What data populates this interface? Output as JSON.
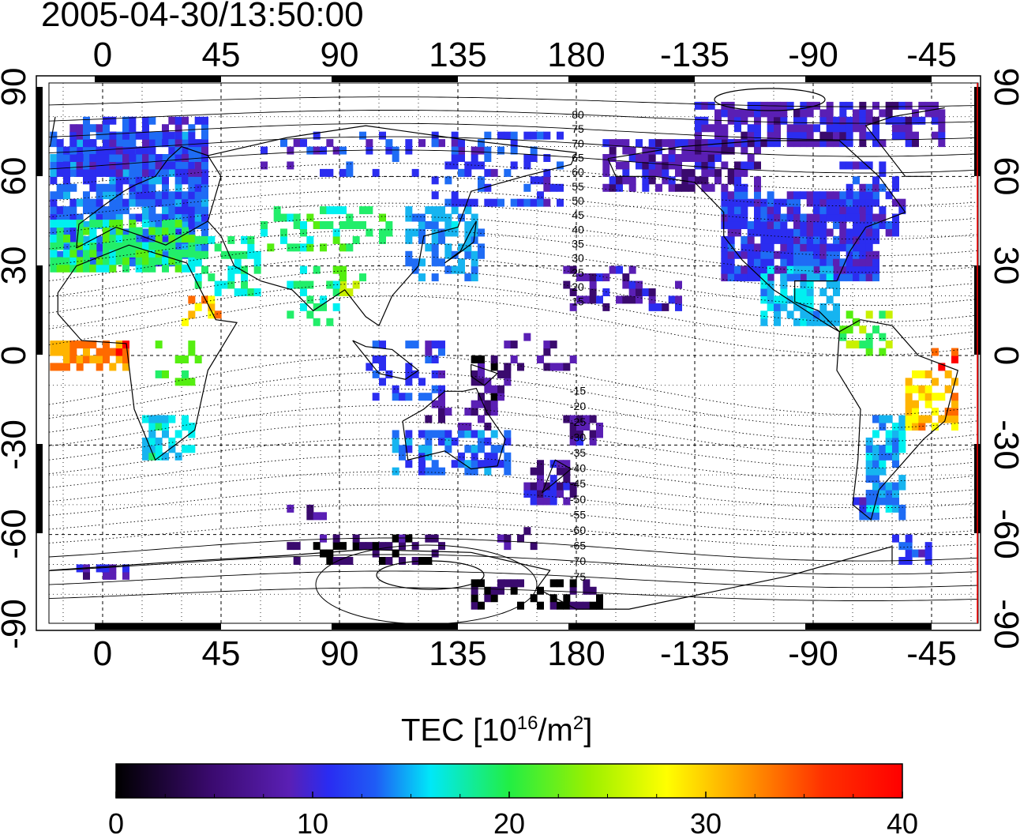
{
  "timestamp": "2005-04-30/13:50:00",
  "map": {
    "top_longitude_labels": [
      "0",
      "45",
      "90",
      "135",
      "180",
      "-135",
      "-90",
      "-45"
    ],
    "bottom_longitude_labels": [
      "0",
      "45",
      "90",
      "135",
      "180",
      "-135",
      "-90",
      "-45"
    ],
    "left_latitude_labels": [
      "90",
      "60",
      "30",
      "0",
      "-30",
      "-60",
      "-90"
    ],
    "right_latitude_labels": [
      "90",
      "60",
      "30",
      "0",
      "-30",
      "-60",
      "-90"
    ],
    "magnetic_latitude_labels": [
      "80",
      "75",
      "70",
      "65",
      "60",
      "55",
      "50",
      "45",
      "40",
      "35",
      "30",
      "25",
      "20",
      "15",
      "-15",
      "-20",
      "-25",
      "-30",
      "-35",
      "-40",
      "-45",
      "-50",
      "-55",
      "-60",
      "-65",
      "-70",
      "-75"
    ],
    "grid": true
  },
  "colorbar": {
    "title_prefix": "TEC  [10",
    "title_exp1": "16",
    "title_mid": "/m",
    "title_exp2": "2",
    "title_suffix": "]",
    "min": 0,
    "max": 40,
    "tick_labels": [
      "0",
      "10",
      "20",
      "30",
      "40"
    ],
    "colors": [
      "#000000",
      "#3a0a6e",
      "#5a1fb4",
      "#2b2df0",
      "#1f6cf5",
      "#16b4f0",
      "#00f0f0",
      "#22ee6a",
      "#55ee11",
      "#c8f000",
      "#ffff00",
      "#ffb400",
      "#ff6a00",
      "#ff0000"
    ]
  }
}
